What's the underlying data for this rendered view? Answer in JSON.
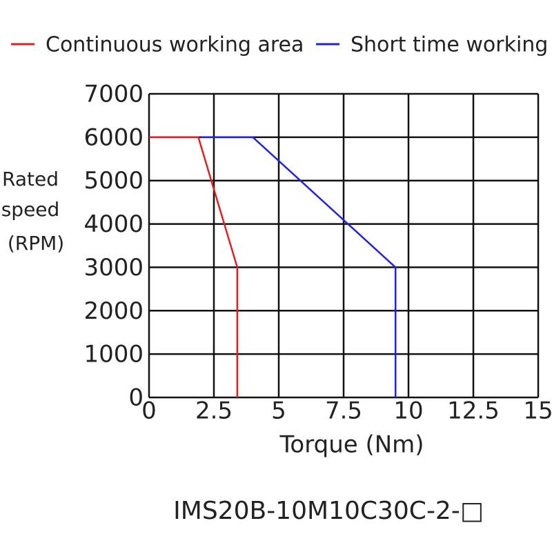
{
  "chart_data": {
    "type": "line",
    "xlabel": "Torque (Nm)",
    "ylabel": [
      "Rated",
      "speed",
      "(RPM)"
    ],
    "caption": "IMS20B-10M10C30C-2-□",
    "series": [
      {
        "name": "Continuous working area",
        "color": "#e02020",
        "x": [
          0,
          1.9,
          3.4,
          3.4
        ],
        "values": [
          6000,
          6000,
          3000,
          0
        ]
      },
      {
        "name": "Short time working",
        "color": "#2020e0",
        "x": [
          2,
          4,
          9.5,
          9.5
        ],
        "values": [
          6000,
          6000,
          3000,
          0
        ]
      }
    ],
    "xlim": [
      0,
      15
    ],
    "xticks": [
      0,
      2.5,
      5,
      7.5,
      10,
      12.5,
      15
    ],
    "ylim": [
      0,
      7000
    ],
    "yticks": [
      0,
      1000,
      2000,
      3000,
      4000,
      5000,
      6000,
      7000
    ],
    "grid": true,
    "legend": "top"
  }
}
